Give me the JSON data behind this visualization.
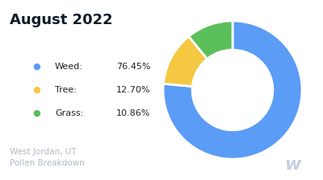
{
  "title": "August 2022",
  "title_color": "#0d1b2a",
  "title_fontsize": 13,
  "subtitle": "West Jordan, UT\nPollen Breakdown",
  "subtitle_color": "#b0b8c8",
  "subtitle_fontsize": 7.5,
  "watermark": "w",
  "watermark_color": "#c5cfe0",
  "categories": [
    "Weed",
    "Tree",
    "Grass"
  ],
  "values": [
    76.45,
    12.7,
    10.86
  ],
  "labels": [
    "76.45%",
    "12.70%",
    "10.86%"
  ],
  "colors": [
    "#5b9cf6",
    "#f5c842",
    "#5bbf5b"
  ],
  "background_color": "#ffffff",
  "donut_width": 0.42,
  "startangle": 90
}
